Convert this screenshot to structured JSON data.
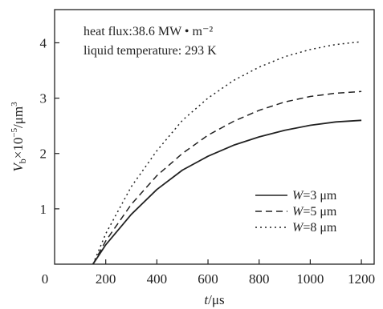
{
  "chart_data": {
    "type": "line",
    "annotations": [
      "heat flux:38.6 MW • m⁻²",
      "liquid temperature: 293 K"
    ],
    "xlabel": {
      "var": "t",
      "unit": "/μs"
    },
    "ylabel": {
      "var": "V",
      "sub": "b",
      "mid": "×10",
      "sup": "−5",
      "unit": "/μm",
      "unit_sup": "3"
    },
    "xlim": [
      0,
      1250
    ],
    "ylim": [
      0,
      4.6
    ],
    "x_ticks": [
      200,
      400,
      600,
      800,
      1000,
      1200
    ],
    "x_tick_labels": [
      "200",
      "400",
      "600",
      "800",
      "1000",
      "1200"
    ],
    "y_ticks": [
      1,
      2,
      3,
      4
    ],
    "y_tick_labels": [
      "1",
      "2",
      "3",
      "4"
    ],
    "origin_label": "0",
    "grid": false,
    "legend_position": "lower-right",
    "series": [
      {
        "name": "W=3 μm",
        "label_var": "W",
        "label_rest": "=3 μm",
        "style": "solid",
        "x": [
          150,
          200,
          300,
          400,
          500,
          600,
          700,
          800,
          900,
          1000,
          1100,
          1200
        ],
        "y": [
          0.0,
          0.35,
          0.9,
          1.35,
          1.7,
          1.95,
          2.15,
          2.3,
          2.42,
          2.51,
          2.57,
          2.6
        ]
      },
      {
        "name": "W=5 μm",
        "label_var": "W",
        "label_rest": "=5 μm",
        "style": "dashed",
        "x": [
          150,
          200,
          300,
          400,
          500,
          600,
          700,
          800,
          900,
          1000,
          1100,
          1200
        ],
        "y": [
          0.0,
          0.42,
          1.08,
          1.6,
          2.0,
          2.33,
          2.58,
          2.78,
          2.93,
          3.03,
          3.09,
          3.12
        ]
      },
      {
        "name": "W=8 μm",
        "label_var": "W",
        "label_rest": "=8 μm",
        "style": "dotted",
        "x": [
          150,
          200,
          300,
          400,
          500,
          600,
          700,
          800,
          900,
          1000,
          1100,
          1200
        ],
        "y": [
          0.0,
          0.55,
          1.4,
          2.05,
          2.6,
          3.0,
          3.32,
          3.56,
          3.75,
          3.88,
          3.97,
          4.02
        ]
      }
    ]
  }
}
